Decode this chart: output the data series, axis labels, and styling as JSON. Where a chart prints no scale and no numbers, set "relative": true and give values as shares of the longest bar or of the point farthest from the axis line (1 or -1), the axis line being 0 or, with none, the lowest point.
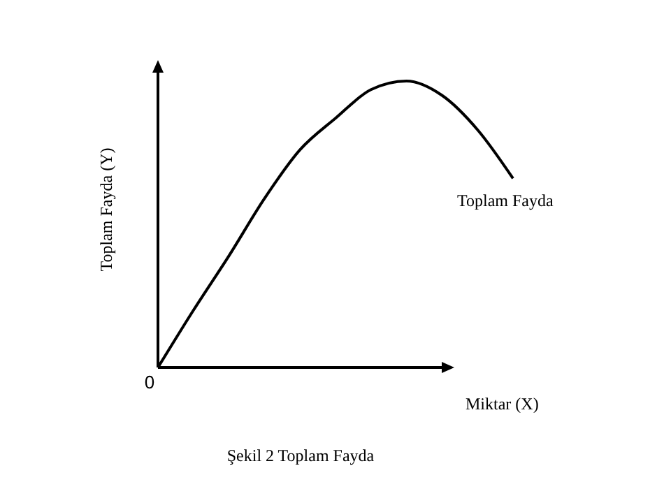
{
  "chart_data": {
    "type": "line",
    "relative": true,
    "xlabel": "Miktar (X)",
    "ylabel": "Toplam Fayda (Y)",
    "annotations": [
      "0",
      "Şekil 2 Toplam Fayda"
    ],
    "categories": [
      null,
      null,
      null,
      null,
      null,
      null,
      null,
      null,
      null,
      null,
      null
    ],
    "series": [
      {
        "name": "Toplam Fayda",
        "color": "#000000",
        "values": [
          0,
          0.2,
          0.39,
          0.59,
          0.76,
          0.87,
          0.97,
          1.0,
          0.95,
          0.83,
          0.66
        ]
      }
    ],
    "marker": "none",
    "line_style": "solid"
  }
}
